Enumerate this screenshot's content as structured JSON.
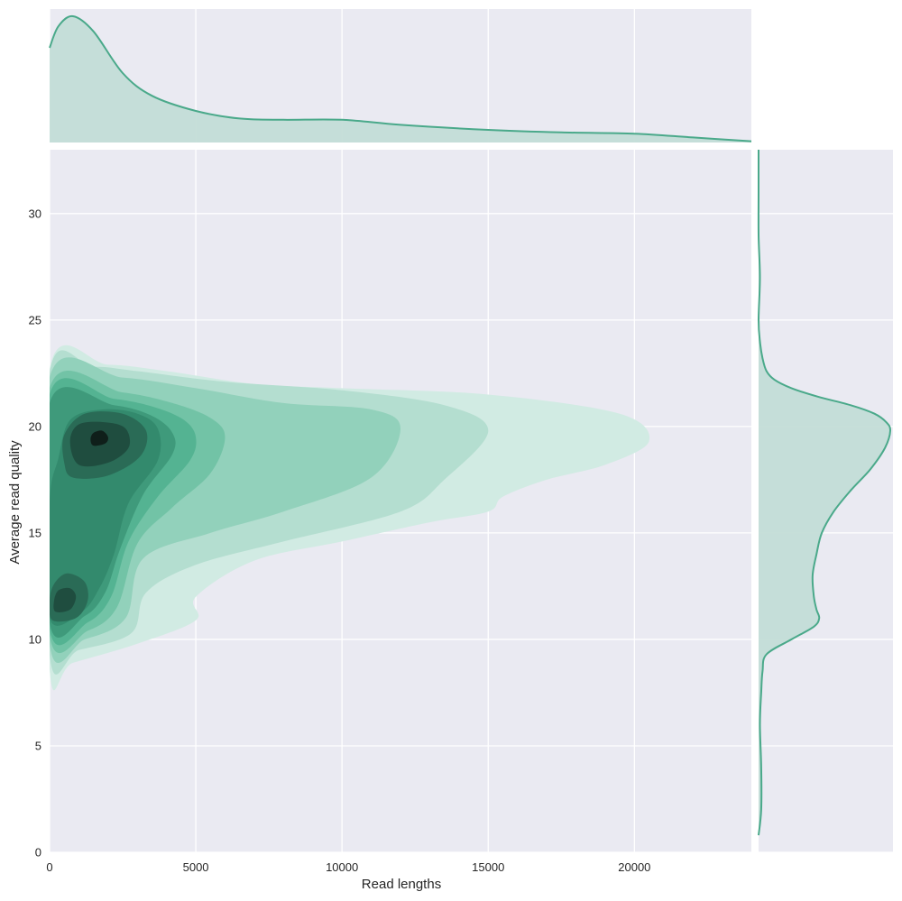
{
  "chart_data": {
    "type": "kde-joint",
    "xlabel": "Read lengths",
    "ylabel": "Average read quality",
    "xlim": [
      0,
      24000
    ],
    "ylim": [
      0,
      33
    ],
    "x_ticks": [
      0,
      5000,
      10000,
      15000,
      20000
    ],
    "y_ticks": [
      0,
      5,
      10,
      15,
      20,
      25,
      30
    ],
    "grid": true,
    "colors": {
      "line": "#4aa98a",
      "marginal_fill": "#c3ddd7",
      "panel_bg": "#eaeaf2",
      "grid": "#ffffff",
      "levels": [
        "#d1ebe3",
        "#b4ded0",
        "#92d1bb",
        "#72c3a6",
        "#54b392",
        "#3f9a7b",
        "#338a6d",
        "#2a6b56",
        "#1f4d3f",
        "#0f1f1a"
      ]
    },
    "joint_density_levels": [
      {
        "level": 1,
        "outline": [
          [
            0,
            8.6
          ],
          [
            800,
            8.9
          ],
          [
            3000,
            9.8
          ],
          [
            5000,
            10.9
          ],
          [
            5000,
            12.0
          ],
          [
            7000,
            13.7
          ],
          [
            10000,
            14.6
          ],
          [
            13000,
            15.5
          ],
          [
            15000,
            16.0
          ],
          [
            15500,
            16.7
          ],
          [
            17000,
            17.5
          ],
          [
            19000,
            18.2
          ],
          [
            20500,
            19.3
          ],
          [
            19500,
            20.6
          ],
          [
            15000,
            21.5
          ],
          [
            10000,
            21.8
          ],
          [
            7000,
            22.0
          ],
          [
            4000,
            22.6
          ],
          [
            2000,
            22.9
          ],
          [
            0,
            22.7
          ]
        ]
      },
      {
        "level": 2,
        "outline": [
          [
            0,
            9.3
          ],
          [
            1000,
            9.5
          ],
          [
            2800,
            10.3
          ],
          [
            3300,
            12.2
          ],
          [
            5000,
            13.5
          ],
          [
            8000,
            14.6
          ],
          [
            12000,
            16.0
          ],
          [
            13500,
            17.5
          ],
          [
            15000,
            19.8
          ],
          [
            13500,
            21.0
          ],
          [
            10000,
            21.7
          ],
          [
            6000,
            22.1
          ],
          [
            3000,
            22.6
          ],
          [
            1500,
            22.8
          ],
          [
            0,
            22.5
          ]
        ]
      },
      {
        "level": 3,
        "outline": [
          [
            0,
            9.8
          ],
          [
            1200,
            10.0
          ],
          [
            2600,
            11.0
          ],
          [
            3200,
            13.8
          ],
          [
            5500,
            15.0
          ],
          [
            8000,
            16.0
          ],
          [
            11000,
            17.6
          ],
          [
            12000,
            19.9
          ],
          [
            11000,
            20.8
          ],
          [
            8000,
            21.1
          ],
          [
            5000,
            21.8
          ],
          [
            2500,
            22.3
          ],
          [
            0,
            22.3
          ]
        ]
      },
      {
        "level": 4,
        "outline": [
          [
            0,
            10.2
          ],
          [
            1300,
            10.4
          ],
          [
            2300,
            11.5
          ],
          [
            3000,
            14.5
          ],
          [
            4200,
            16.2
          ],
          [
            5500,
            17.8
          ],
          [
            6000,
            19.5
          ],
          [
            5500,
            20.4
          ],
          [
            4200,
            21.1
          ],
          [
            2500,
            21.6
          ],
          [
            0,
            21.8
          ]
        ]
      },
      {
        "level": 5,
        "outline": [
          [
            0,
            10.5
          ],
          [
            1300,
            10.8
          ],
          [
            2100,
            12.0
          ],
          [
            2700,
            14.6
          ],
          [
            3700,
            16.7
          ],
          [
            4800,
            18.4
          ],
          [
            5000,
            19.5
          ],
          [
            4600,
            20.3
          ],
          [
            3600,
            20.9
          ],
          [
            2200,
            21.3
          ],
          [
            0,
            21.5
          ]
        ]
      },
      {
        "level": 6,
        "outline": [
          [
            0,
            10.8
          ],
          [
            1200,
            11.1
          ],
          [
            1900,
            12.2
          ],
          [
            2400,
            14.2
          ],
          [
            3200,
            16.8
          ],
          [
            4200,
            18.7
          ],
          [
            4200,
            19.7
          ],
          [
            3500,
            20.5
          ],
          [
            2200,
            21.0
          ],
          [
            0,
            21.1
          ]
        ]
      },
      {
        "level": 7,
        "outline": [
          [
            0,
            11.0
          ],
          [
            1100,
            11.3
          ],
          [
            1700,
            12.4
          ],
          [
            2200,
            14.0
          ],
          [
            2700,
            16.4
          ],
          [
            3700,
            18.4
          ],
          [
            3700,
            19.9
          ],
          [
            3000,
            20.6
          ],
          [
            1800,
            20.8
          ],
          [
            700,
            20.3
          ],
          [
            300,
            18.5
          ],
          [
            0,
            16.5
          ]
        ]
      },
      {
        "level": 8,
        "outline": [
          [
            800,
            17.6
          ],
          [
            2000,
            17.7
          ],
          [
            3100,
            18.6
          ],
          [
            3300,
            19.8
          ],
          [
            2500,
            20.6
          ],
          [
            1200,
            20.6
          ],
          [
            500,
            19.6
          ],
          [
            500,
            18.3
          ]
        ]
      },
      {
        "level": 8,
        "outline": [
          [
            100,
            10.9
          ],
          [
            900,
            11.0
          ],
          [
            1300,
            11.8
          ],
          [
            1200,
            12.7
          ],
          [
            600,
            13.1
          ],
          [
            150,
            12.6
          ],
          [
            0,
            11.8
          ]
        ]
      },
      {
        "level": 9,
        "outline": [
          [
            1000,
            18.2
          ],
          [
            2000,
            18.3
          ],
          [
            2700,
            19.0
          ],
          [
            2600,
            19.9
          ],
          [
            1900,
            20.2
          ],
          [
            1000,
            20.1
          ],
          [
            700,
            19.3
          ]
        ]
      },
      {
        "level": 9,
        "outline": [
          [
            200,
            11.3
          ],
          [
            700,
            11.4
          ],
          [
            900,
            12.0
          ],
          [
            700,
            12.4
          ],
          [
            300,
            12.3
          ],
          [
            150,
            11.8
          ]
        ]
      },
      {
        "level": 10,
        "outline": [
          [
            1500,
            19.1
          ],
          [
            1900,
            19.2
          ],
          [
            2000,
            19.5
          ],
          [
            1800,
            19.8
          ],
          [
            1500,
            19.7
          ],
          [
            1400,
            19.4
          ]
        ]
      }
    ],
    "marginal_x": {
      "x": [
        0,
        300,
        800,
        1500,
        2500,
        3500,
        5000,
        6500,
        8000,
        10000,
        12000,
        15000,
        17500,
        20000,
        22000,
        24000
      ],
      "density": [
        0.75,
        0.92,
        1.0,
        0.88,
        0.55,
        0.37,
        0.25,
        0.19,
        0.18,
        0.18,
        0.14,
        0.1,
        0.08,
        0.07,
        0.04,
        0.01
      ]
    },
    "marginal_y": {
      "y": [
        0.8,
        2.0,
        4.0,
        6.0,
        7.5,
        8.5,
        9.3,
        10.0,
        10.6,
        11.0,
        11.4,
        12.0,
        13.0,
        14.0,
        15.0,
        16.0,
        17.0,
        18.0,
        19.0,
        19.8,
        20.2,
        20.6,
        21.0,
        21.4,
        21.8,
        22.2,
        22.6,
        23.2,
        24.0,
        25.0,
        27.0,
        29.0,
        31.0,
        33.0
      ],
      "density": [
        0.0,
        0.02,
        0.02,
        0.01,
        0.02,
        0.03,
        0.06,
        0.25,
        0.42,
        0.46,
        0.44,
        0.42,
        0.41,
        0.44,
        0.48,
        0.57,
        0.7,
        0.85,
        0.96,
        1.0,
        0.97,
        0.88,
        0.7,
        0.45,
        0.25,
        0.12,
        0.06,
        0.03,
        0.01,
        0.0,
        0.01,
        0.0,
        0.0,
        0.0
      ]
    }
  }
}
